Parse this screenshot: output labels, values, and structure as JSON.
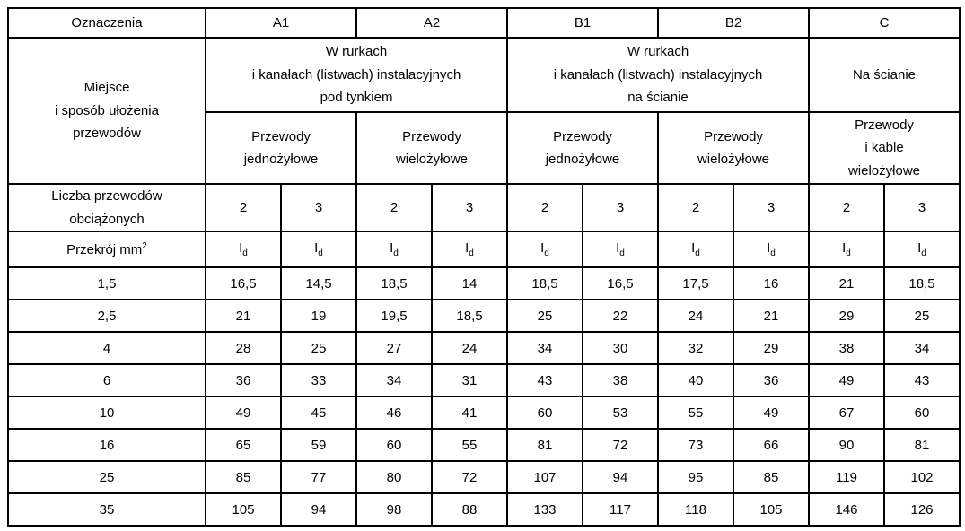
{
  "page": {
    "background": "#ffffff",
    "border_color": "#000000",
    "text_color": "#000000"
  },
  "table": {
    "designations_label": "Oznaczenia",
    "designations": [
      "A1",
      "A2",
      "B1",
      "B2",
      "C"
    ],
    "place_label": "Miejsce\ni sposób ułożenia\nprzewodów",
    "groups": {
      "a": "W rurkach\ni kanałach (listwach) instalacyjnych\npod tynkiem",
      "b": "W rurkach\ni kanałach (listwach) instalacyjnych\nna ścianie",
      "c": "Na ścianie"
    },
    "subgroups": [
      "Przewody\njednożyłowe",
      "Przewody\nwielożyłowe",
      "Przewody\njednożyłowe",
      "Przewody\nwielożyłowe",
      "Przewody\ni kable\nwielożyłowe"
    ],
    "loaded_conductors_label": "Liczba przewodów\nobciążonych",
    "loaded_conductors": [
      "2",
      "3",
      "2",
      "3",
      "2",
      "3",
      "2",
      "3",
      "2",
      "3"
    ],
    "cross_section": {
      "label": "Przekrój mm",
      "sup": "2"
    },
    "current_symbol": {
      "base": "I",
      "sub": "d"
    },
    "rows": [
      {
        "section": "1,5",
        "values": [
          "16,5",
          "14,5",
          "18,5",
          "14",
          "18,5",
          "16,5",
          "17,5",
          "16",
          "21",
          "18,5"
        ]
      },
      {
        "section": "2,5",
        "values": [
          "21",
          "19",
          "19,5",
          "18,5",
          "25",
          "22",
          "24",
          "21",
          "29",
          "25"
        ]
      },
      {
        "section": "4",
        "values": [
          "28",
          "25",
          "27",
          "24",
          "34",
          "30",
          "32",
          "29",
          "38",
          "34"
        ]
      },
      {
        "section": "6",
        "values": [
          "36",
          "33",
          "34",
          "31",
          "43",
          "38",
          "40",
          "36",
          "49",
          "43"
        ]
      },
      {
        "section": "10",
        "values": [
          "49",
          "45",
          "46",
          "41",
          "60",
          "53",
          "55",
          "49",
          "67",
          "60"
        ]
      },
      {
        "section": "16",
        "values": [
          "65",
          "59",
          "60",
          "55",
          "81",
          "72",
          "73",
          "66",
          "90",
          "81"
        ]
      },
      {
        "section": "25",
        "values": [
          "85",
          "77",
          "80",
          "72",
          "107",
          "94",
          "95",
          "85",
          "119",
          "102"
        ]
      },
      {
        "section": "35",
        "values": [
          "105",
          "94",
          "98",
          "88",
          "133",
          "117",
          "118",
          "105",
          "146",
          "126"
        ]
      }
    ]
  }
}
